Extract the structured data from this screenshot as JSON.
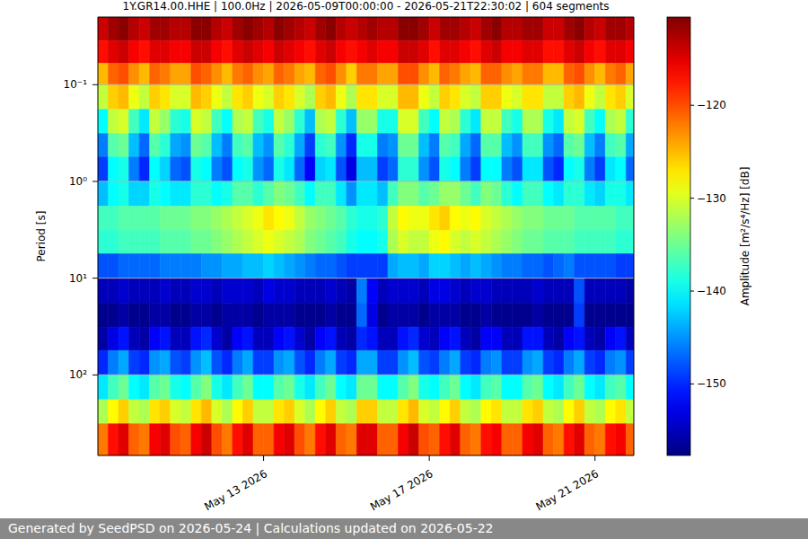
{
  "chart_data": {
    "type": "heatmap",
    "title": "1Y.GR14.00.HHE | 100.0Hz | 2026-05-09T00:00:00 - 2026-05-21T22:30:02 | 604 segments",
    "ylabel": "Period [s]",
    "log": "y",
    "grid": true,
    "color": "jet",
    "xlim": [
      "2026-05-09T00:00:00",
      "2026-05-21T22:30:02"
    ],
    "xticks": [
      {
        "value": "2026-05-13",
        "label": "May 13 2026"
      },
      {
        "value": "2026-05-17",
        "label": "May 17 2026"
      },
      {
        "value": "2026-05-21",
        "label": "May 21 2026"
      }
    ],
    "ylim": [
      0.02,
      680
    ],
    "yticks": [
      {
        "value": 0.1,
        "label": "10⁻¹"
      },
      {
        "value": 1,
        "label": "10⁰"
      },
      {
        "value": 10,
        "label": "10¹"
      },
      {
        "value": 100,
        "label": "10²"
      }
    ],
    "x_bins": [
      "2026-05-09T00:00:00",
      "2026-05-09T06:00:00",
      "2026-05-09T12:00:00",
      "2026-05-09T18:00:00",
      "2026-05-10T00:00:00",
      "2026-05-10T06:00:00",
      "2026-05-10T12:00:00",
      "2026-05-10T18:00:00",
      "2026-05-11T00:00:00",
      "2026-05-11T06:00:00",
      "2026-05-11T12:00:00",
      "2026-05-11T18:00:00",
      "2026-05-12T00:00:00",
      "2026-05-12T06:00:00",
      "2026-05-12T12:00:00",
      "2026-05-12T18:00:00",
      "2026-05-13T00:00:00",
      "2026-05-13T06:00:00",
      "2026-05-13T12:00:00",
      "2026-05-13T18:00:00",
      "2026-05-14T00:00:00",
      "2026-05-14T06:00:00",
      "2026-05-14T12:00:00",
      "2026-05-14T18:00:00",
      "2026-05-15T00:00:00",
      "2026-05-15T06:00:00",
      "2026-05-15T12:00:00",
      "2026-05-15T18:00:00",
      "2026-05-16T00:00:00",
      "2026-05-16T06:00:00",
      "2026-05-16T12:00:00",
      "2026-05-16T18:00:00",
      "2026-05-17T00:00:00",
      "2026-05-17T06:00:00",
      "2026-05-17T12:00:00",
      "2026-05-17T18:00:00",
      "2026-05-18T00:00:00",
      "2026-05-18T06:00:00",
      "2026-05-18T12:00:00",
      "2026-05-18T18:00:00",
      "2026-05-19T00:00:00",
      "2026-05-19T06:00:00",
      "2026-05-19T12:00:00",
      "2026-05-19T18:00:00",
      "2026-05-20T00:00:00",
      "2026-05-20T06:00:00",
      "2026-05-20T12:00:00",
      "2026-05-20T18:00:00",
      "2026-05-21T00:00:00",
      "2026-05-21T06:00:00",
      "2026-05-21T12:00:00",
      "2026-05-21T18:00:00",
      "2026-05-21T22:30:02"
    ],
    "y_bins": [
      0.02,
      0.035,
      0.06,
      0.1,
      0.18,
      0.32,
      0.56,
      1,
      1.8,
      3.2,
      5.6,
      10,
      18,
      32,
      56,
      100,
      180,
      320,
      680
    ],
    "cells": [
      [
        -114,
        -112,
        -111,
        -113,
        -114,
        -112,
        -112,
        -113,
        -113,
        -111,
        -111,
        -113,
        -114,
        -112,
        -111,
        -112,
        -113,
        -111,
        -112,
        -113,
        -114,
        -112,
        -111,
        -113,
        -114,
        -113,
        -112,
        -113,
        -113,
        -111,
        -111,
        -112,
        -114,
        -112,
        -112,
        -113,
        -114,
        -112,
        -111,
        -113,
        -113,
        -112,
        -112,
        -114,
        -114,
        -112,
        -111,
        -113,
        -114,
        -112,
        -112,
        -113
      ],
      [
        -117,
        -115,
        -114,
        -116,
        -117,
        -115,
        -115,
        -116,
        -116,
        -114,
        -114,
        -116,
        -117,
        -115,
        -114,
        -115,
        -116,
        -114,
        -115,
        -116,
        -117,
        -115,
        -114,
        -116,
        -117,
        -116,
        -115,
        -116,
        -116,
        -114,
        -114,
        -115,
        -117,
        -115,
        -115,
        -116,
        -117,
        -115,
        -114,
        -116,
        -116,
        -115,
        -115,
        -117,
        -117,
        -115,
        -114,
        -116,
        -117,
        -115,
        -115,
        -116
      ],
      [
        -125,
        -121,
        -120,
        -123,
        -125,
        -121,
        -122,
        -124,
        -124,
        -120,
        -121,
        -123,
        -125,
        -122,
        -121,
        -123,
        -124,
        -121,
        -122,
        -124,
        -125,
        -121,
        -120,
        -123,
        -126,
        -122,
        -122,
        -124,
        -124,
        -120,
        -120,
        -123,
        -125,
        -121,
        -122,
        -124,
        -125,
        -121,
        -121,
        -123,
        -124,
        -122,
        -122,
        -125,
        -125,
        -121,
        -120,
        -123,
        -125,
        -122,
        -121,
        -124
      ],
      [
        -131,
        -126,
        -125,
        -129,
        -131,
        -126,
        -127,
        -130,
        -130,
        -125,
        -126,
        -129,
        -131,
        -127,
        -126,
        -129,
        -130,
        -126,
        -127,
        -130,
        -132,
        -126,
        -125,
        -129,
        -132,
        -127,
        -127,
        -130,
        -130,
        -125,
        -125,
        -129,
        -131,
        -126,
        -127,
        -130,
        -131,
        -126,
        -126,
        -129,
        -130,
        -127,
        -127,
        -131,
        -131,
        -126,
        -125,
        -129,
        -131,
        -127,
        -126,
        -130
      ],
      [
        -140,
        -131,
        -130,
        -137,
        -141,
        -131,
        -133,
        -138,
        -139,
        -130,
        -131,
        -137,
        -140,
        -132,
        -131,
        -137,
        -139,
        -131,
        -133,
        -138,
        -143,
        -132,
        -131,
        -138,
        -143,
        -133,
        -133,
        -139,
        -139,
        -130,
        -130,
        -137,
        -140,
        -131,
        -132,
        -138,
        -141,
        -131,
        -131,
        -137,
        -139,
        -132,
        -132,
        -139,
        -141,
        -131,
        -130,
        -137,
        -140,
        -132,
        -131,
        -138
      ],
      [
        -146,
        -136,
        -135,
        -143,
        -147,
        -136,
        -138,
        -144,
        -145,
        -135,
        -136,
        -143,
        -146,
        -137,
        -136,
        -143,
        -145,
        -136,
        -138,
        -144,
        -149,
        -138,
        -137,
        -145,
        -150,
        -139,
        -139,
        -146,
        -145,
        -135,
        -135,
        -143,
        -146,
        -136,
        -137,
        -144,
        -147,
        -136,
        -136,
        -143,
        -145,
        -137,
        -137,
        -145,
        -147,
        -136,
        -135,
        -143,
        -146,
        -137,
        -136,
        -144
      ],
      [
        -149,
        -140,
        -139,
        -146,
        -150,
        -140,
        -142,
        -147,
        -148,
        -139,
        -140,
        -146,
        -148,
        -140,
        -139,
        -145,
        -147,
        -139,
        -141,
        -147,
        -152,
        -142,
        -141,
        -148,
        -153,
        -143,
        -143,
        -149,
        -147,
        -138,
        -138,
        -145,
        -148,
        -139,
        -140,
        -146,
        -149,
        -140,
        -140,
        -146,
        -148,
        -141,
        -141,
        -148,
        -150,
        -140,
        -139,
        -146,
        -149,
        -141,
        -140,
        -147
      ],
      [
        -143,
        -140,
        -139,
        -142,
        -142,
        -139,
        -140,
        -141,
        -141,
        -138,
        -138,
        -140,
        -139,
        -136,
        -136,
        -138,
        -136,
        -134,
        -135,
        -137,
        -140,
        -137,
        -137,
        -141,
        -145,
        -141,
        -141,
        -143,
        -137,
        -134,
        -134,
        -136,
        -135,
        -133,
        -133,
        -135,
        -137,
        -134,
        -135,
        -138,
        -140,
        -137,
        -137,
        -140,
        -141,
        -138,
        -138,
        -141,
        -142,
        -139,
        -139,
        -141
      ],
      [
        -137,
        -137,
        -136,
        -136,
        -136,
        -136,
        -135,
        -135,
        -135,
        -134,
        -134,
        -133,
        -132,
        -131,
        -130,
        -129,
        -127,
        -128,
        -129,
        -131,
        -133,
        -134,
        -135,
        -136,
        -138,
        -139,
        -139,
        -138,
        -131,
        -128,
        -129,
        -129,
        -127,
        -126,
        -128,
        -129,
        -128,
        -130,
        -131,
        -132,
        -133,
        -134,
        -134,
        -135,
        -135,
        -135,
        -136,
        -136,
        -136,
        -136,
        -137,
        -137
      ],
      [
        -138,
        -138,
        -137,
        -137,
        -137,
        -137,
        -136,
        -136,
        -136,
        -135,
        -135,
        -134,
        -133,
        -132,
        -131,
        -130,
        -129,
        -130,
        -131,
        -132,
        -134,
        -135,
        -136,
        -137,
        -139,
        -140,
        -140,
        -139,
        -132,
        -130,
        -131,
        -131,
        -129,
        -128,
        -130,
        -131,
        -130,
        -131,
        -132,
        -133,
        -134,
        -135,
        -135,
        -136,
        -136,
        -136,
        -137,
        -137,
        -137,
        -137,
        -138,
        -138
      ],
      [
        -148,
        -148,
        -147,
        -147,
        -147,
        -147,
        -146,
        -146,
        -146,
        -146,
        -145,
        -145,
        -144,
        -144,
        -143,
        -143,
        -142,
        -143,
        -144,
        -145,
        -146,
        -147,
        -147,
        -148,
        -149,
        -149,
        -149,
        -149,
        -144,
        -143,
        -143,
        -144,
        -142,
        -142,
        -143,
        -144,
        -143,
        -144,
        -145,
        -146,
        -146,
        -147,
        -147,
        -148,
        -147,
        -146,
        -148,
        -148,
        -148,
        -148,
        -149,
        -149
      ],
      [
        -155,
        -155,
        -154,
        -155,
        -155,
        -155,
        -154,
        -155,
        -155,
        -154,
        -154,
        -155,
        -154,
        -154,
        -154,
        -155,
        -153,
        -154,
        -154,
        -155,
        -155,
        -155,
        -154,
        -155,
        -156,
        -146,
        -152,
        -155,
        -154,
        -154,
        -154,
        -155,
        -153,
        -153,
        -154,
        -155,
        -154,
        -154,
        -155,
        -155,
        -155,
        -155,
        -154,
        -155,
        -155,
        -155,
        -148,
        -155,
        -155,
        -155,
        -155,
        -156
      ],
      [
        -157,
        -157,
        -156,
        -157,
        -157,
        -156,
        -156,
        -157,
        -157,
        -156,
        -156,
        -157,
        -156,
        -156,
        -156,
        -157,
        -156,
        -156,
        -156,
        -157,
        -157,
        -157,
        -156,
        -157,
        -157,
        -147,
        -153,
        -157,
        -156,
        -156,
        -156,
        -157,
        -156,
        -156,
        -156,
        -157,
        -157,
        -156,
        -157,
        -157,
        -157,
        -157,
        -156,
        -157,
        -157,
        -157,
        -149,
        -157,
        -157,
        -157,
        -157,
        -157
      ],
      [
        -156,
        -153,
        -151,
        -155,
        -156,
        -152,
        -151,
        -155,
        -155,
        -151,
        -150,
        -154,
        -156,
        -152,
        -151,
        -155,
        -155,
        -152,
        -151,
        -154,
        -156,
        -152,
        -151,
        -155,
        -156,
        -150,
        -151,
        -155,
        -155,
        -151,
        -150,
        -154,
        -155,
        -152,
        -151,
        -155,
        -156,
        -152,
        -152,
        -155,
        -155,
        -151,
        -151,
        -155,
        -156,
        -152,
        -151,
        -155,
        -156,
        -152,
        -151,
        -155
      ],
      [
        -150,
        -146,
        -144,
        -149,
        -150,
        -145,
        -144,
        -148,
        -149,
        -145,
        -143,
        -148,
        -150,
        -146,
        -144,
        -149,
        -149,
        -145,
        -144,
        -148,
        -150,
        -146,
        -144,
        -149,
        -150,
        -144,
        -144,
        -149,
        -149,
        -145,
        -143,
        -148,
        -149,
        -146,
        -144,
        -149,
        -150,
        -146,
        -145,
        -149,
        -149,
        -145,
        -144,
        -149,
        -150,
        -146,
        -144,
        -149,
        -150,
        -146,
        -145,
        -149
      ],
      [
        -141,
        -137,
        -135,
        -140,
        -141,
        -136,
        -135,
        -139,
        -140,
        -136,
        -134,
        -139,
        -141,
        -137,
        -135,
        -140,
        -140,
        -136,
        -135,
        -139,
        -141,
        -137,
        -135,
        -140,
        -141,
        -135,
        -135,
        -140,
        -140,
        -136,
        -134,
        -139,
        -140,
        -137,
        -135,
        -140,
        -141,
        -137,
        -136,
        -140,
        -140,
        -136,
        -135,
        -140,
        -141,
        -137,
        -135,
        -140,
        -141,
        -137,
        -136,
        -140
      ],
      [
        -132,
        -128,
        -126,
        -131,
        -132,
        -127,
        -126,
        -130,
        -131,
        -127,
        -125,
        -130,
        -132,
        -128,
        -126,
        -131,
        -131,
        -127,
        -126,
        -130,
        -132,
        -128,
        -126,
        -131,
        -132,
        -126,
        -126,
        -131,
        -131,
        -127,
        -125,
        -130,
        -131,
        -128,
        -126,
        -131,
        -132,
        -128,
        -127,
        -131,
        -131,
        -127,
        -126,
        -131,
        -132,
        -128,
        -126,
        -131,
        -132,
        -128,
        -127,
        -131
      ],
      [
        -122,
        -117,
        -115,
        -121,
        -122,
        -116,
        -115,
        -120,
        -121,
        -116,
        -114,
        -120,
        -122,
        -117,
        -115,
        -121,
        -121,
        -116,
        -115,
        -120,
        -122,
        -117,
        -115,
        -121,
        -122,
        -115,
        -115,
        -121,
        -121,
        -116,
        -114,
        -120,
        -121,
        -117,
        -115,
        -121,
        -122,
        -117,
        -116,
        -121,
        -121,
        -116,
        -115,
        -121,
        -122,
        -117,
        -115,
        -121,
        -122,
        -117,
        -116,
        -121
      ]
    ],
    "colorbar": {
      "label": "Amplitude [m²/s⁴/Hz] [dB]",
      "range": [
        -157.7,
        -110.5
      ],
      "ticks": [
        {
          "value": -120,
          "label": "−120"
        },
        {
          "value": -130,
          "label": "−130"
        },
        {
          "value": -140,
          "label": "−140"
        },
        {
          "value": -150,
          "label": "−150"
        }
      ]
    }
  },
  "footer": "Generated by SeedPSD on 2026-05-24 | Calculations updated on 2026-05-22"
}
